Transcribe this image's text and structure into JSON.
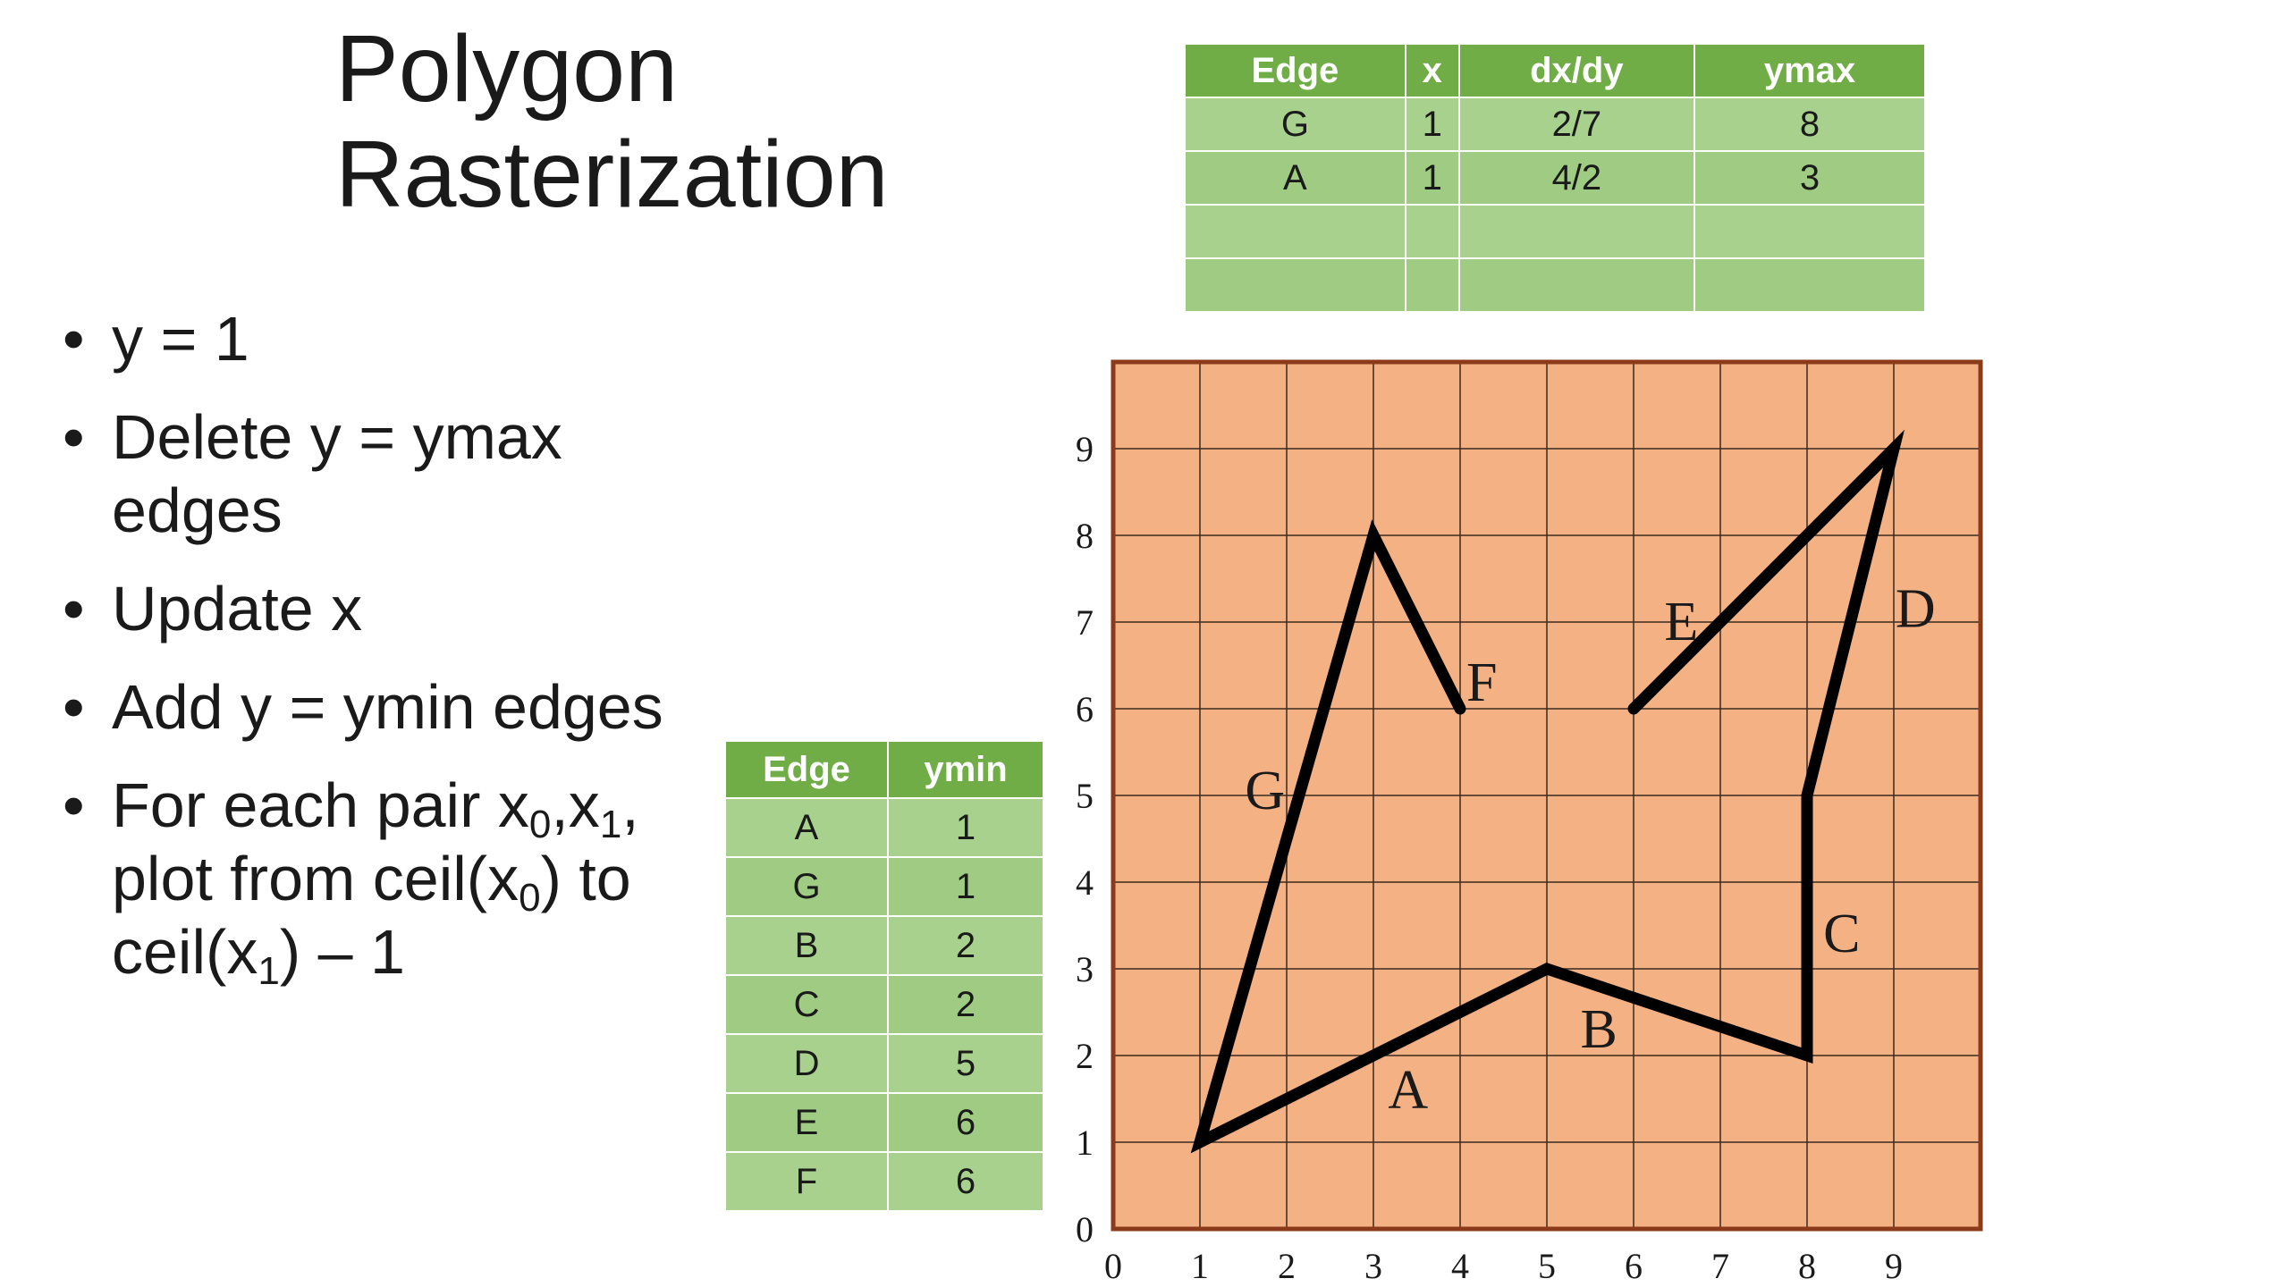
{
  "slide": {
    "title_line1": "Polygon",
    "title_line2": "Rasterization",
    "bullets": [
      {
        "text": "y = 1"
      },
      {
        "text": "Delete y = ymax edges"
      },
      {
        "text": "Update x"
      },
      {
        "text": "Add y = ymin edges"
      },
      {
        "part1": "For each pair x",
        "sub0": "0",
        "part2": ",x",
        "sub1": "1",
        "part3": ", plot from ceil(x",
        "sub2": "0",
        "part4": ") to ceil(x",
        "sub3": "1",
        "part5": ") – 1"
      }
    ]
  },
  "active_edge_table": {
    "headers": [
      "Edge",
      "x",
      "dx/dy",
      "ymax"
    ],
    "rows": [
      [
        "G",
        "1",
        "2/7",
        "8"
      ],
      [
        "A",
        "1",
        "4/2",
        "3"
      ],
      [
        "",
        "",
        "",
        ""
      ],
      [
        "",
        "",
        "",
        ""
      ]
    ]
  },
  "edge_table": {
    "headers": [
      "Edge",
      "ymin"
    ],
    "rows": [
      [
        "A",
        "1"
      ],
      [
        "G",
        "1"
      ],
      [
        "B",
        "2"
      ],
      [
        "C",
        "2"
      ],
      [
        "D",
        "5"
      ],
      [
        "E",
        "6"
      ],
      [
        "F",
        "6"
      ]
    ]
  },
  "diagram": {
    "grid_color": "#f4b183",
    "border_color": "#8b3a1a",
    "line_color": "#000000",
    "x_range": [
      0,
      10
    ],
    "y_range": [
      0,
      10
    ],
    "x_ticks": [
      "0",
      "1",
      "2",
      "3",
      "4",
      "5",
      "6",
      "7",
      "8",
      "9"
    ],
    "y_ticks": [
      "0",
      "1",
      "2",
      "3",
      "4",
      "5",
      "6",
      "7",
      "8",
      "9"
    ],
    "polyline": [
      [
        4,
        6
      ],
      [
        3,
        8
      ],
      [
        1,
        1
      ],
      [
        5,
        3
      ],
      [
        8,
        2
      ],
      [
        8,
        5
      ],
      [
        9,
        9
      ],
      [
        6,
        6
      ]
    ],
    "edge_labels": [
      {
        "name": "A",
        "at": [
          3.4,
          1.6
        ]
      },
      {
        "name": "B",
        "at": [
          5.6,
          2.3
        ]
      },
      {
        "name": "C",
        "at": [
          8.4,
          3.4
        ]
      },
      {
        "name": "D",
        "at": [
          9.25,
          7.15
        ]
      },
      {
        "name": "E",
        "at": [
          6.55,
          7.0
        ]
      },
      {
        "name": "F",
        "at": [
          4.25,
          6.3
        ]
      },
      {
        "name": "G",
        "at": [
          1.75,
          5.05
        ]
      }
    ]
  }
}
